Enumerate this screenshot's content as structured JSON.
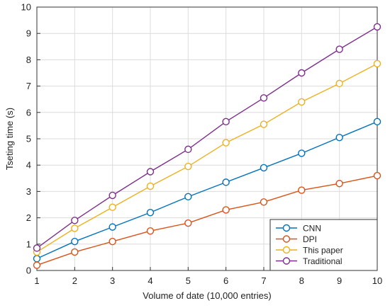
{
  "chart_data": {
    "type": "line",
    "title": "",
    "xlabel": "Volume of date  (10,000 entries)",
    "ylabel": "Tseting time (s)",
    "xlim": [
      1,
      10
    ],
    "ylim": [
      0,
      10
    ],
    "grid": true,
    "legend_position": "bottom-right",
    "x": [
      1,
      2,
      3,
      4,
      5,
      6,
      7,
      8,
      9,
      10
    ],
    "xticks": [
      "1",
      "2",
      "3",
      "4",
      "5",
      "6",
      "7",
      "8",
      "9",
      "10"
    ],
    "yticks": [
      "0",
      "1",
      "2",
      "3",
      "4",
      "5",
      "6",
      "7",
      "8",
      "9",
      "10"
    ],
    "series": [
      {
        "name": "CNN",
        "color": "#0072BD",
        "values": [
          0.45,
          1.1,
          1.65,
          2.2,
          2.8,
          3.35,
          3.9,
          4.45,
          5.05,
          5.65
        ]
      },
      {
        "name": "DPI",
        "color": "#D95319",
        "values": [
          0.2,
          0.7,
          1.1,
          1.5,
          1.8,
          2.3,
          2.6,
          3.05,
          3.3,
          3.6
        ]
      },
      {
        "name": "This paper",
        "color": "#EDB120",
        "values": [
          0.7,
          1.6,
          2.4,
          3.2,
          3.95,
          4.85,
          5.55,
          6.4,
          7.1,
          7.85
        ]
      },
      {
        "name": "Traditional",
        "color": "#7E2F8E",
        "values": [
          0.85,
          1.9,
          2.85,
          3.75,
          4.6,
          5.65,
          6.55,
          7.5,
          8.4,
          9.25
        ]
      }
    ]
  }
}
